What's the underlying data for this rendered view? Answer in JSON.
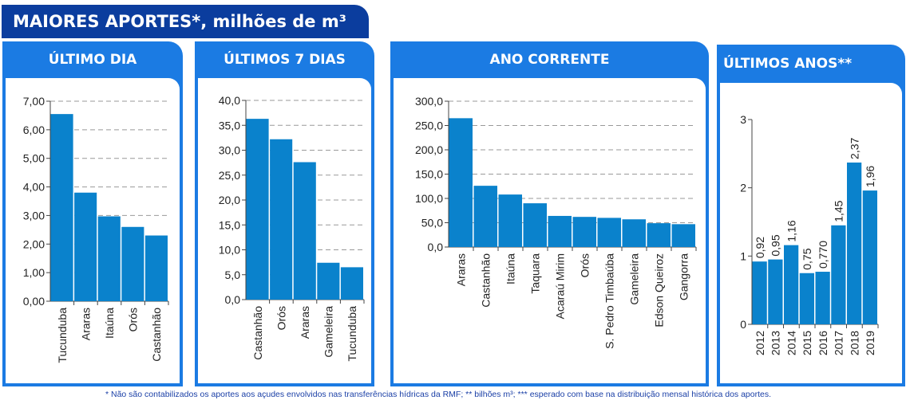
{
  "header": {
    "title": "MAIORES APORTES*, milhões de m³"
  },
  "colors": {
    "bar": "#0a82cc",
    "panel": "#1b7be3",
    "title": "#0b3d9e"
  },
  "footnote": "* Não são contabilizados os aportes aos açudes envolvidos nas transferências hídricas da RMF; ** bilhões m³; *** esperado com base na distribuição mensal histórica dos aportes.",
  "chart_data": [
    {
      "type": "bar",
      "title": "ÚLTIMO DIA",
      "categories": [
        "Tucunduba",
        "Araras",
        "Itaúna",
        "Orós",
        "Castanhão"
      ],
      "values": [
        6.55,
        3.8,
        2.97,
        2.6,
        2.3
      ],
      "ylim": [
        0,
        7
      ],
      "yticks": [
        "0,00",
        "1,00",
        "2,00",
        "3,00",
        "4,00",
        "5,00",
        "6,00",
        "7,00"
      ],
      "grid": true
    },
    {
      "type": "bar",
      "title": "ÚLTIMOS 7 DIAS",
      "categories": [
        "Castanhão",
        "Orós",
        "Araras",
        "Gameleira",
        "Tucunduba"
      ],
      "values": [
        36.3,
        32.2,
        27.6,
        7.4,
        6.5
      ],
      "ylim": [
        0,
        40
      ],
      "yticks": [
        "0,0",
        "5,0",
        "10,0",
        "15,0",
        "20,0",
        "25,0",
        "30,0",
        "35,0",
        "40,0"
      ],
      "grid": true
    },
    {
      "type": "bar",
      "title": "ANO CORRENTE",
      "categories": [
        "Araras",
        "Castanhão",
        "Itaúna",
        "Taquara",
        "Acaraú Mirim",
        "Orós",
        "S. Pedro Timbaúba",
        "Gameleira",
        "Edson Queiroz",
        "Gangorra"
      ],
      "values": [
        265,
        126,
        108,
        90,
        64,
        62,
        60,
        57,
        49,
        47
      ],
      "ylim": [
        0,
        300
      ],
      "yticks": [
        "0,0",
        "50,0",
        "100,0",
        "150,0",
        "200,0",
        "250,0",
        "300,0"
      ],
      "grid": true
    },
    {
      "type": "bar",
      "title": "ÚLTIMOS ANOS**",
      "categories": [
        "2012",
        "2013",
        "2014",
        "2015",
        "2016",
        "2017",
        "2018",
        "2019"
      ],
      "values": [
        0.92,
        0.95,
        1.16,
        0.75,
        0.77,
        1.45,
        2.37,
        1.96
      ],
      "labels": [
        "0,92",
        "0,95",
        "1,16",
        "0,75",
        "0,770",
        "1,45",
        "2,37",
        "1,96"
      ],
      "ylim": [
        0,
        3
      ],
      "yticks": [
        "0",
        "1",
        "2",
        "3"
      ],
      "grid": false
    }
  ]
}
